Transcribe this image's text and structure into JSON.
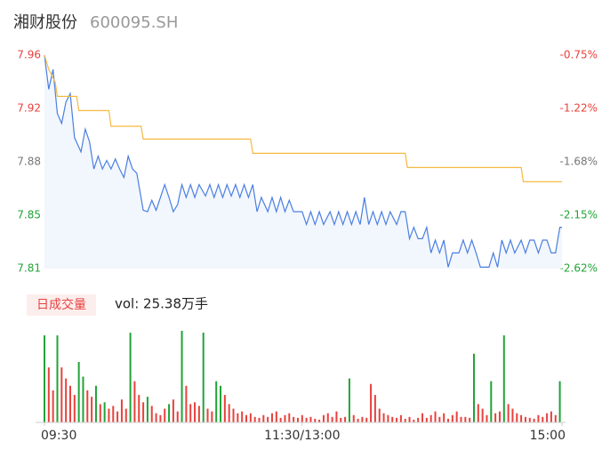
{
  "header": {
    "title": "湘财股份",
    "code": "600095.SH"
  },
  "chart_data": [
    {
      "type": "line",
      "xlim": [
        0,
        241
      ],
      "ylim": [
        7.81,
        7.96
      ],
      "yticks": [
        {
          "value": 7.96,
          "label": "7.96",
          "color": "#e8413d"
        },
        {
          "value": 7.9225,
          "label": "7.92",
          "color": "#e8413d"
        },
        {
          "value": 7.885,
          "label": "7.88",
          "color": "#777777"
        },
        {
          "value": 7.8475,
          "label": "7.85",
          "color": "#21a336"
        },
        {
          "value": 7.81,
          "label": "7.81",
          "color": "#21a336"
        }
      ],
      "y2lim": [
        -2.62,
        -0.75
      ],
      "y2ticks": [
        {
          "value": -0.75,
          "label": "-0.75%",
          "color": "#e8413d"
        },
        {
          "value": -1.2175,
          "label": "-1.22%",
          "color": "#e8413d"
        },
        {
          "value": -1.685,
          "label": "-1.68%",
          "color": "#777777"
        },
        {
          "value": -2.1525,
          "label": "-2.15%",
          "color": "#21a336"
        },
        {
          "value": -2.62,
          "label": "-2.62%",
          "color": "#21a336"
        }
      ],
      "series": [
        {
          "color": "#4a7fe0",
          "x": [
            0,
            2,
            4,
            6,
            8,
            10,
            12,
            14,
            17,
            19,
            21,
            23,
            25,
            27,
            29,
            31,
            33,
            35,
            37,
            39,
            41,
            43,
            46,
            48,
            50,
            52,
            54,
            56,
            58,
            60,
            62,
            64,
            66,
            68,
            70,
            72,
            75,
            77,
            79,
            81,
            83,
            85,
            87,
            89,
            91,
            93,
            95,
            97,
            99,
            101,
            104,
            106,
            108,
            110,
            112,
            114,
            116,
            120,
            122,
            124,
            126,
            128,
            130,
            133,
            135,
            137,
            139,
            141,
            143,
            145,
            147,
            149,
            151,
            153,
            155,
            157,
            159,
            161,
            164,
            166,
            168,
            170,
            172,
            174,
            176,
            178,
            180,
            182,
            184,
            186,
            188,
            190,
            193,
            195,
            197,
            199,
            201,
            203,
            205,
            207,
            209,
            211,
            213,
            215,
            217,
            219,
            222,
            224,
            226,
            228,
            230,
            232,
            234,
            236,
            238,
            240,
            241
          ],
          "values": [
            7.96,
            7.936,
            7.95,
            7.919,
            7.912,
            7.927,
            7.933,
            7.902,
            7.892,
            7.908,
            7.899,
            7.88,
            7.889,
            7.88,
            7.886,
            7.88,
            7.887,
            7.88,
            7.874,
            7.889,
            7.88,
            7.877,
            7.851,
            7.85,
            7.858,
            7.851,
            7.86,
            7.869,
            7.86,
            7.85,
            7.855,
            7.869,
            7.86,
            7.869,
            7.86,
            7.869,
            7.861,
            7.869,
            7.86,
            7.869,
            7.86,
            7.869,
            7.861,
            7.869,
            7.86,
            7.869,
            7.86,
            7.869,
            7.85,
            7.86,
            7.85,
            7.86,
            7.85,
            7.86,
            7.85,
            7.858,
            7.85,
            7.85,
            7.841,
            7.85,
            7.841,
            7.85,
            7.841,
            7.85,
            7.841,
            7.85,
            7.841,
            7.85,
            7.841,
            7.85,
            7.841,
            7.86,
            7.841,
            7.85,
            7.841,
            7.85,
            7.841,
            7.85,
            7.841,
            7.85,
            7.85,
            7.831,
            7.839,
            7.831,
            7.831,
            7.839,
            7.821,
            7.83,
            7.821,
            7.83,
            7.811,
            7.821,
            7.821,
            7.83,
            7.821,
            7.83,
            7.821,
            7.811,
            7.811,
            7.811,
            7.821,
            7.811,
            7.83,
            7.821,
            7.83,
            7.821,
            7.83,
            7.821,
            7.83,
            7.83,
            7.821,
            7.83,
            7.83,
            7.821,
            7.821,
            7.839,
            7.839
          ]
        },
        {
          "color": "#f5b942",
          "x": [
            0,
            2,
            5,
            6,
            15,
            16,
            30,
            31,
            45,
            46,
            96,
            97,
            168,
            169,
            222,
            223,
            241
          ],
          "values": [
            7.96,
            7.95,
            7.941,
            7.931,
            7.931,
            7.921,
            7.921,
            7.91,
            7.91,
            7.901,
            7.901,
            7.891,
            7.891,
            7.881,
            7.881,
            7.871,
            7.871
          ]
        }
      ]
    },
    {
      "type": "bar",
      "title": "日成交量",
      "subtitle": "vol: 25.38万手",
      "xlim": [
        0,
        241
      ],
      "ylim": [
        0,
        100
      ],
      "xticks": [
        {
          "value": 0,
          "label": "09:30"
        },
        {
          "value": 120,
          "label": "11:30/13:00"
        },
        {
          "value": 241,
          "label": "15:00"
        }
      ],
      "x": [
        0,
        2,
        4,
        6,
        8,
        10,
        12,
        14,
        16,
        18,
        20,
        22,
        24,
        26,
        28,
        30,
        32,
        34,
        36,
        38,
        40,
        42,
        44,
        46,
        48,
        50,
        52,
        54,
        56,
        58,
        60,
        62,
        64,
        66,
        68,
        70,
        72,
        74,
        76,
        78,
        80,
        82,
        84,
        86,
        88,
        90,
        92,
        94,
        96,
        98,
        100,
        102,
        104,
        106,
        108,
        110,
        112,
        114,
        116,
        118,
        120,
        122,
        124,
        126,
        128,
        130,
        132,
        134,
        136,
        138,
        140,
        142,
        144,
        146,
        148,
        150,
        152,
        154,
        156,
        158,
        160,
        162,
        164,
        166,
        168,
        170,
        172,
        174,
        176,
        178,
        180,
        182,
        184,
        186,
        188,
        190,
        192,
        194,
        196,
        198,
        200,
        202,
        204,
        206,
        208,
        210,
        212,
        214,
        216,
        218,
        220,
        222,
        224,
        226,
        228,
        230,
        232,
        234,
        236,
        238,
        240
      ],
      "values": [
        95,
        60,
        35,
        95,
        60,
        48,
        40,
        30,
        66,
        50,
        35,
        28,
        40,
        20,
        22,
        15,
        18,
        12,
        25,
        15,
        98,
        45,
        30,
        22,
        28,
        18,
        10,
        8,
        15,
        20,
        25,
        12,
        100,
        40,
        20,
        22,
        18,
        98,
        15,
        12,
        45,
        40,
        30,
        20,
        15,
        10,
        12,
        8,
        10,
        6,
        5,
        8,
        6,
        10,
        12,
        5,
        8,
        10,
        6,
        5,
        8,
        5,
        6,
        4,
        3,
        8,
        10,
        6,
        12,
        5,
        6,
        48,
        8,
        4,
        6,
        5,
        42,
        30,
        15,
        10,
        8,
        6,
        5,
        8,
        4,
        6,
        3,
        5,
        10,
        5,
        8,
        12,
        6,
        10,
        4,
        8,
        12,
        6,
        6,
        5,
        75,
        20,
        15,
        8,
        45,
        10,
        12,
        95,
        20,
        15,
        10,
        8,
        6,
        5,
        4,
        8,
        6,
        10,
        12,
        8,
        45
      ],
      "colors": [
        "#21a336",
        "#e8413d",
        "#e8413d",
        "#21a336",
        "#e8413d",
        "#e8413d",
        "#e8413d",
        "#e8413d",
        "#21a336",
        "#21a336",
        "#e8413d",
        "#e8413d",
        "#21a336",
        "#e8413d",
        "#21a336",
        "#e8413d",
        "#e8413d",
        "#e8413d",
        "#e8413d",
        "#e8413d",
        "#21a336",
        "#e8413d",
        "#e8413d",
        "#e8413d",
        "#21a336",
        "#e8413d",
        "#e8413d",
        "#e8413d",
        "#e8413d",
        "#21a336",
        "#e8413d",
        "#e8413d",
        "#21a336",
        "#e8413d",
        "#e8413d",
        "#e8413d",
        "#e8413d",
        "#21a336",
        "#e8413d",
        "#e8413d",
        "#21a336",
        "#21a336",
        "#e8413d",
        "#e8413d",
        "#e8413d",
        "#e8413d",
        "#e8413d",
        "#e8413d",
        "#e8413d",
        "#e8413d",
        "#e8413d",
        "#e8413d",
        "#e8413d",
        "#e8413d",
        "#e8413d",
        "#e8413d",
        "#e8413d",
        "#e8413d",
        "#e8413d",
        "#e8413d",
        "#e8413d",
        "#e8413d",
        "#e8413d",
        "#e8413d",
        "#e8413d",
        "#e8413d",
        "#e8413d",
        "#e8413d",
        "#e8413d",
        "#e8413d",
        "#e8413d",
        "#21a336",
        "#e8413d",
        "#e8413d",
        "#e8413d",
        "#e8413d",
        "#e8413d",
        "#e8413d",
        "#e8413d",
        "#e8413d",
        "#e8413d",
        "#e8413d",
        "#e8413d",
        "#e8413d",
        "#e8413d",
        "#e8413d",
        "#e8413d",
        "#e8413d",
        "#e8413d",
        "#e8413d",
        "#e8413d",
        "#e8413d",
        "#e8413d",
        "#e8413d",
        "#e8413d",
        "#e8413d",
        "#e8413d",
        "#e8413d",
        "#e8413d",
        "#e8413d",
        "#21a336",
        "#e8413d",
        "#e8413d",
        "#e8413d",
        "#21a336",
        "#e8413d",
        "#e8413d",
        "#21a336",
        "#e8413d",
        "#e8413d",
        "#e8413d",
        "#e8413d",
        "#e8413d",
        "#e8413d",
        "#e8413d",
        "#e8413d",
        "#e8413d",
        "#e8413d",
        "#e8413d",
        "#e8413d",
        "#21a336"
      ]
    }
  ]
}
